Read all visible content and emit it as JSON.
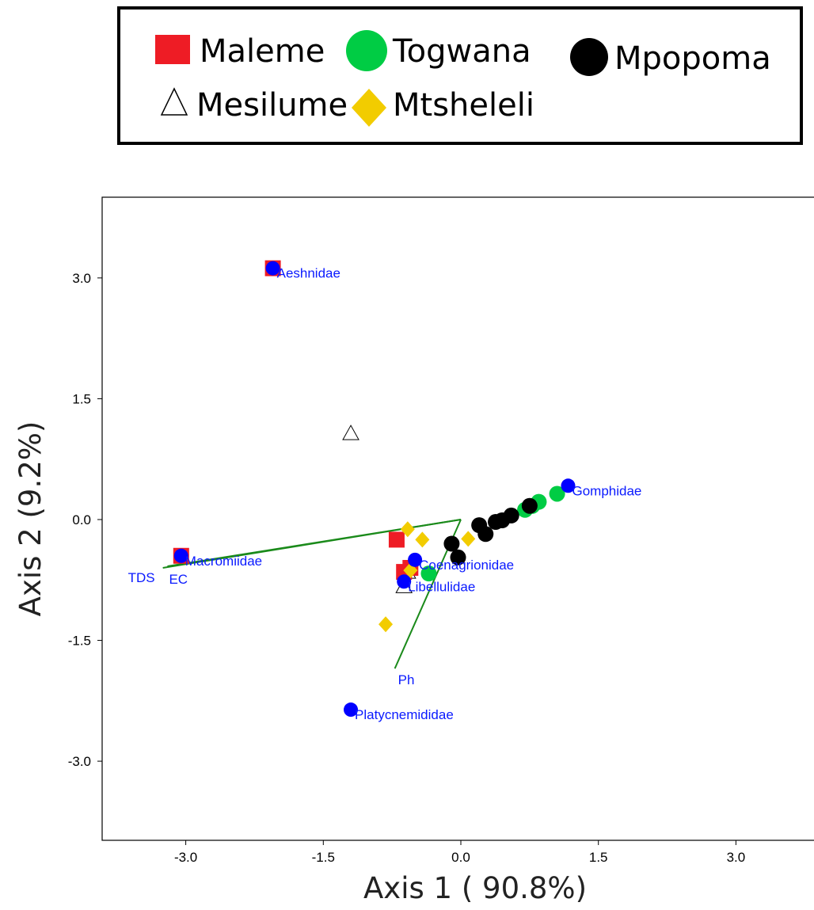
{
  "chart_data": {
    "type": "scatter",
    "xlabel": "Axis 1 ( 90.8%)",
    "ylabel": "Axis 2 (9.2%)",
    "xlim": [
      -3.9,
      3.9
    ],
    "ylim": [
      -4.0,
      4.0
    ],
    "xticks": [
      "-3.0",
      "-1.5",
      "0.0",
      "1.5",
      "3.0"
    ],
    "yticks": [
      "3.0",
      "1.5",
      "0.0",
      "-1.5",
      "-3.0"
    ],
    "legend_position": "top",
    "legend": [
      {
        "name": "Maleme",
        "shape": "square",
        "color": "#ee1c25"
      },
      {
        "name": "Togwana",
        "shape": "circle",
        "color": "#00cc44"
      },
      {
        "name": "Mpopoma",
        "shape": "circle",
        "color": "#000000"
      },
      {
        "name": "Mesilume",
        "shape": "triangle",
        "color": "#ffffff"
      },
      {
        "name": "Mtsheleli",
        "shape": "diamond",
        "color": "#f2cc00"
      }
    ],
    "series": [
      {
        "name": "Maleme",
        "shape": "square",
        "color": "#ee1c25",
        "points": [
          [
            -2.05,
            3.12
          ],
          [
            -3.05,
            -0.45
          ],
          [
            -0.7,
            -0.25
          ],
          [
            -0.55,
            -0.6
          ],
          [
            -0.62,
            -0.65
          ]
        ]
      },
      {
        "name": "Togwana",
        "shape": "circle",
        "color": "#00cc44",
        "points": [
          [
            -0.35,
            -0.67
          ],
          [
            0.7,
            0.12
          ],
          [
            0.85,
            0.22
          ],
          [
            1.05,
            0.32
          ],
          [
            0.78,
            0.17
          ]
        ]
      },
      {
        "name": "Mpopoma",
        "shape": "circle",
        "color": "#000000",
        "points": [
          [
            -0.1,
            -0.3
          ],
          [
            -0.03,
            -0.47
          ],
          [
            0.2,
            -0.07
          ],
          [
            0.27,
            -0.18
          ],
          [
            0.38,
            -0.03
          ],
          [
            0.45,
            -0.01
          ],
          [
            0.55,
            0.05
          ],
          [
            0.75,
            0.17
          ]
        ]
      },
      {
        "name": "Mesilume",
        "shape": "triangle",
        "color": "#ffffff",
        "points": [
          [
            -1.2,
            1.07
          ],
          [
            -0.62,
            -0.83
          ],
          [
            -0.58,
            -0.65
          ]
        ]
      },
      {
        "name": "Mtsheleli",
        "shape": "diamond",
        "color": "#f2cc00",
        "points": [
          [
            -0.58,
            -0.12
          ],
          [
            -0.42,
            -0.25
          ],
          [
            0.08,
            -0.24
          ],
          [
            -0.82,
            -1.3
          ],
          [
            -0.55,
            -0.63
          ]
        ]
      }
    ],
    "taxa": {
      "color": "#0000ff",
      "points": [
        {
          "label": "Aeshnidae",
          "x": -2.05,
          "y": 3.12
        },
        {
          "label": "Macromiidae",
          "x": -3.05,
          "y": -0.45
        },
        {
          "label": "Coenagrionidae",
          "x": -0.5,
          "y": -0.5
        },
        {
          "label": "Libellulidae",
          "x": -0.62,
          "y": -0.77
        },
        {
          "label": "Gomphidae",
          "x": 1.17,
          "y": 0.42
        },
        {
          "label": "Platycnemididae",
          "x": -1.2,
          "y": -2.36
        }
      ]
    },
    "vectors": {
      "color": "#1a8a1a",
      "items": [
        {
          "label": "TDS",
          "x": -3.25,
          "y": -0.6
        },
        {
          "label": "EC",
          "x": -3.2,
          "y": -0.58
        },
        {
          "label": "Ph",
          "x": -0.72,
          "y": -1.85
        }
      ]
    }
  }
}
